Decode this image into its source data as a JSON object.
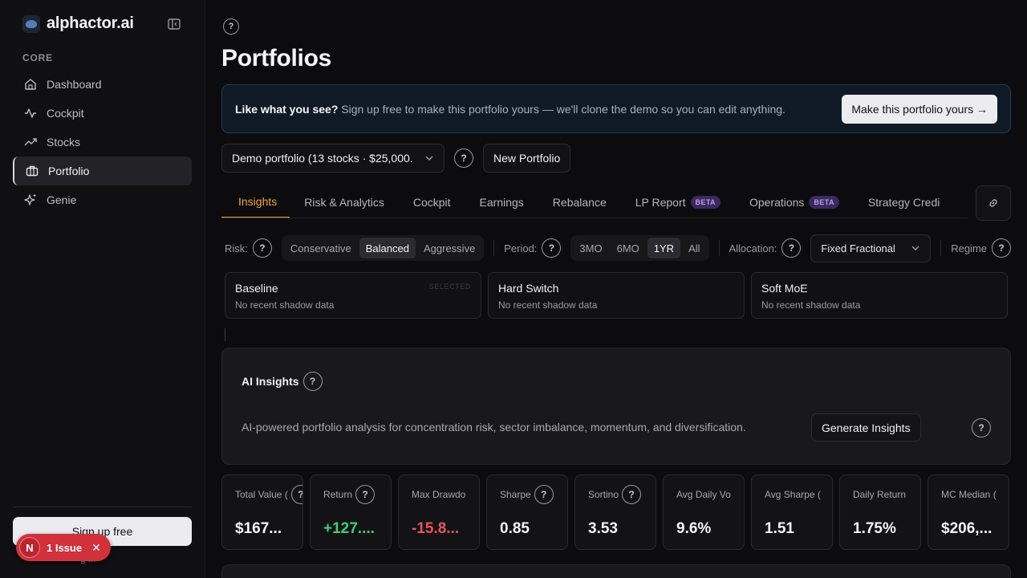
{
  "brand": {
    "name": "alphactor.ai"
  },
  "sidebar": {
    "section": "CORE",
    "items": [
      {
        "label": "Dashboard",
        "icon": "home-icon"
      },
      {
        "label": "Cockpit",
        "icon": "activity-icon"
      },
      {
        "label": "Stocks",
        "icon": "trending-up-icon"
      },
      {
        "label": "Portfolio",
        "icon": "briefcase-icon",
        "active": true
      },
      {
        "label": "Genie",
        "icon": "sparkles-icon"
      }
    ],
    "signup_label": "Sign up free",
    "login_text": "g in"
  },
  "issue_badge": {
    "letter": "N",
    "label": "1 Issue",
    "close": "✕"
  },
  "page": {
    "title": "Portfolios",
    "help": "?"
  },
  "banner": {
    "bold": "Like what you see?",
    "text": " Sign up free to make this portfolio yours — we'll clone the demo so you can edit anything.",
    "button": "Make this portfolio yours →"
  },
  "portfolio_select": {
    "value": "Demo portfolio (13 stocks · $25,000.",
    "help": "?",
    "new_button": "New Portfolio"
  },
  "tabs": [
    {
      "label": "Insights",
      "active": true
    },
    {
      "label": "Risk & Analytics"
    },
    {
      "label": "Cockpit"
    },
    {
      "label": "Earnings"
    },
    {
      "label": "Rebalance"
    },
    {
      "label": "LP Report",
      "badge": "BETA"
    },
    {
      "label": "Operations",
      "badge": "BETA"
    },
    {
      "label": "Strategy Credi"
    }
  ],
  "controls": {
    "risk_label": "Risk:",
    "risk_options": [
      "Conservative",
      "Balanced",
      "Aggressive"
    ],
    "risk_selected": "Balanced",
    "period_label": "Period:",
    "period_options": [
      "3MO",
      "6MO",
      "1YR",
      "All"
    ],
    "period_selected": "1YR",
    "allocation_label": "Allocation:",
    "allocation_value": "Fixed Fractional",
    "regime_label": "Regime"
  },
  "strategies": [
    {
      "name": "Baseline",
      "sub": "No recent shadow data",
      "tag": "SELECTED"
    },
    {
      "name": "Hard Switch",
      "sub": "No recent shadow data",
      "tag": ""
    },
    {
      "name": "Soft MoE",
      "sub": "No recent shadow data",
      "tag": ""
    }
  ],
  "ai_insights": {
    "title": "AI Insights",
    "description": "AI-powered portfolio analysis for concentration risk, sector imbalance, momentum, and diversification.",
    "button": "Generate Insights"
  },
  "metrics": [
    {
      "label": "Total Value (",
      "value": "$167...",
      "help": true,
      "tone": "neutral"
    },
    {
      "label": "Return",
      "value": "+127....",
      "help": true,
      "tone": "pos"
    },
    {
      "label": "Max Drawdo",
      "value": "-15.8...",
      "help": false,
      "tone": "neg"
    },
    {
      "label": "Sharpe",
      "value": "0.85",
      "help": true,
      "tone": "neutral"
    },
    {
      "label": "Sortino",
      "value": "3.53",
      "help": true,
      "tone": "neutral"
    },
    {
      "label": "Avg Daily Vo",
      "value": "9.6%",
      "help": false,
      "tone": "neutral"
    },
    {
      "label": "Avg Sharpe (",
      "value": "1.51",
      "help": false,
      "tone": "neutral"
    },
    {
      "label": "Daily Return",
      "value": "1.75%",
      "help": false,
      "tone": "neutral"
    },
    {
      "label": "MC Median (",
      "value": "$206,...",
      "help": false,
      "tone": "neutral"
    }
  ],
  "colors": {
    "accent": "#f2a63a",
    "positive": "#3ecf74",
    "negative": "#e8545b",
    "beta": "#b89cf0"
  }
}
